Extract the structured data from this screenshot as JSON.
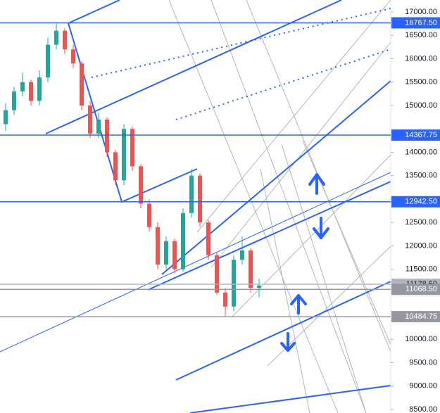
{
  "chart_data": {
    "type": "candlestick",
    "ylim": [
      8425,
      17256
    ],
    "yticks": [
      {
        "value": 17000,
        "label": "17000.00"
      },
      {
        "value": 16500,
        "label": "16500.00"
      },
      {
        "value": 16000,
        "label": "16000.00"
      },
      {
        "value": 15500,
        "label": "15500.00"
      },
      {
        "value": 15000,
        "label": "15000.00"
      },
      {
        "value": 14000,
        "label": "14000.00"
      },
      {
        "value": 13500,
        "label": "13500.00"
      },
      {
        "value": 12500,
        "label": "12500.00"
      },
      {
        "value": 12000,
        "label": "12000.00"
      },
      {
        "value": 11500,
        "label": "11500.00"
      },
      {
        "value": 10000,
        "label": "10000.00"
      },
      {
        "value": 9500,
        "label": "9500.00"
      },
      {
        "value": 9000,
        "label": "9000.00"
      },
      {
        "value": 8500,
        "label": "8500.00"
      }
    ],
    "up_color": "#26a69a",
    "down_color": "#ef5350",
    "open": [
      14600,
      14900,
      15300,
      15500,
      15100,
      15600,
      16300,
      16600,
      16200,
      15900,
      15000,
      14400,
      14700,
      14000,
      13400,
      14500,
      13700,
      12900,
      12400,
      11600,
      12100,
      11500,
      12700,
      13500,
      12500,
      11800,
      11000,
      10700,
      11700,
      11900,
      11100
    ],
    "high": [
      15050,
      15400,
      15700,
      15550,
      15750,
      16450,
      16750,
      16650,
      16300,
      15950,
      15100,
      14850,
      14750,
      14050,
      14600,
      14550,
      13750,
      13000,
      12500,
      12200,
      12150,
      12800,
      13650,
      13550,
      12550,
      11850,
      11100,
      11800,
      12200,
      11950,
      11300
    ],
    "low": [
      14450,
      14800,
      15200,
      15000,
      15000,
      15500,
      16200,
      16100,
      15800,
      14900,
      14300,
      14300,
      13900,
      13300,
      13300,
      13600,
      12800,
      12300,
      11500,
      11500,
      11400,
      11450,
      12600,
      12400,
      11700,
      10950,
      10500,
      10600,
      11600,
      11000,
      10900
    ],
    "close": [
      14900,
      15300,
      15500,
      15100,
      15600,
      16300,
      16600,
      16200,
      15900,
      15000,
      14400,
      14700,
      14000,
      13400,
      14500,
      13700,
      12900,
      12400,
      11600,
      12100,
      11500,
      12700,
      13500,
      12500,
      11800,
      11000,
      10700,
      11700,
      11900,
      11100,
      11150
    ],
    "levels": [
      {
        "value": 16767.5,
        "label": "16767.50",
        "color": "#2962ff"
      },
      {
        "value": 14367.75,
        "label": "14367.75",
        "color": "#2962ff"
      },
      {
        "value": 12942.5,
        "label": "12942.50",
        "color": "#2962ff"
      },
      {
        "value": 11178.5,
        "label": "11178.50",
        "color": "#b2b5be"
      },
      {
        "value": 11068.5,
        "label": "11068.50",
        "color": "#9598a1"
      },
      {
        "value": 10484.75,
        "label": "10484.75",
        "color": "#9598a1"
      }
    ]
  }
}
